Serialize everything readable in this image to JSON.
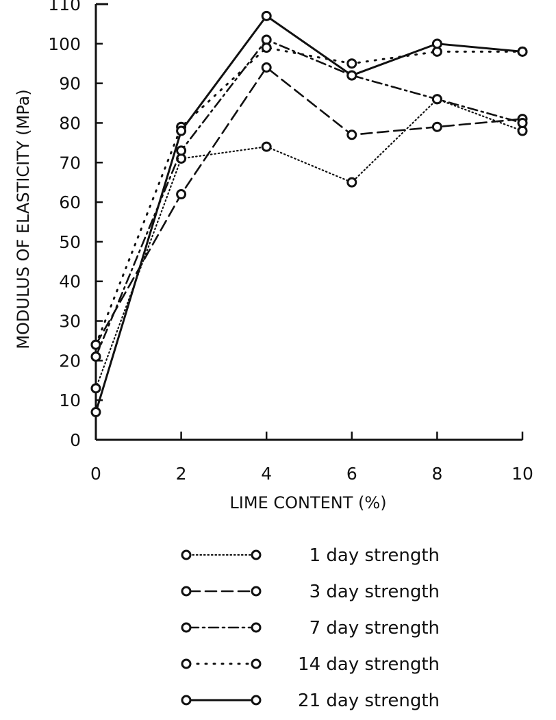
{
  "chart_data": {
    "type": "line",
    "title": "",
    "xlabel": "LIME CONTENT (%)",
    "ylabel": "MODULUS OF ELASTICITY (MPa)",
    "xlim": [
      0,
      10
    ],
    "ylim": [
      0,
      110
    ],
    "xticks": [
      0,
      2,
      4,
      6,
      8,
      10
    ],
    "yticks": [
      0,
      10,
      20,
      30,
      40,
      50,
      60,
      70,
      80,
      90,
      100,
      110
    ],
    "grid": false,
    "legend_position": "bottom",
    "x": [
      0,
      2,
      4,
      6,
      8,
      10
    ],
    "series": [
      {
        "name": "1 day strength",
        "style": "dotted",
        "values": [
          13,
          71,
          74,
          65,
          86,
          78
        ]
      },
      {
        "name": "3 day strength",
        "style": "dashed",
        "values": [
          24,
          62,
          94,
          77,
          79,
          81
        ]
      },
      {
        "name": "7 day strength",
        "style": "dash-dot",
        "values": [
          21,
          73,
          101,
          92,
          86,
          80
        ]
      },
      {
        "name": "14 day strength",
        "style": "loose-dotted",
        "values": [
          24,
          79,
          99,
          95,
          98,
          98
        ]
      },
      {
        "name": "21 day strength",
        "style": "solid",
        "values": [
          7,
          78,
          107,
          92,
          100,
          98
        ]
      }
    ]
  }
}
